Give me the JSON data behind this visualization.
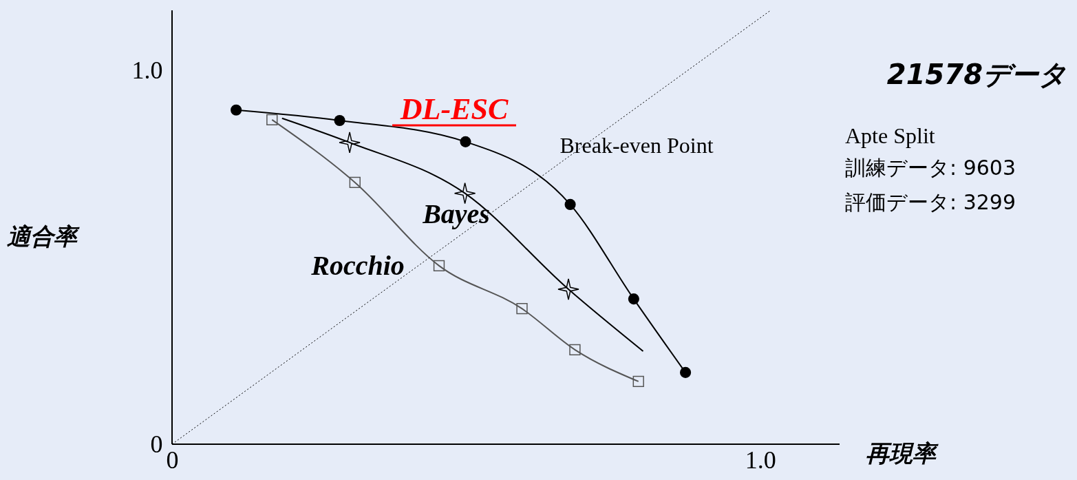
{
  "chart_data": {
    "type": "line",
    "title": "21578データ",
    "xlabel": "再現率",
    "ylabel": "適合率",
    "xlim": [
      0,
      1.135
    ],
    "ylim": [
      0,
      1.162
    ],
    "xticks": [
      {
        "value": 0,
        "label": "0"
      },
      {
        "value": 1,
        "label": "1.0"
      }
    ],
    "yticks": [
      {
        "value": 0,
        "label": "0"
      },
      {
        "value": 1,
        "label": "1.0"
      }
    ],
    "grid": false,
    "series": [
      {
        "type": "line",
        "marker": "circle",
        "color": "#000000",
        "x": [
          0.109,
          0.285,
          0.499,
          0.677,
          0.785,
          0.873
        ],
        "values": [
          0.895,
          0.867,
          0.81,
          0.642,
          0.389,
          0.192
        ]
      },
      {
        "type": "line",
        "marker": "none",
        "color": "#000000",
        "x": [
          0.187,
          0.302,
          0.498,
          0.674,
          0.801
        ],
        "values": [
          0.873,
          0.808,
          0.672,
          0.415,
          0.249
        ]
      },
      {
        "type": "scatter",
        "marker": "star",
        "color": "#000000",
        "x": [
          0.302,
          0.498,
          0.674
        ],
        "values": [
          0.808,
          0.672,
          0.415
        ]
      },
      {
        "type": "line",
        "marker": "square",
        "color": "#555555",
        "x": [
          0.17,
          0.311,
          0.454,
          0.595,
          0.685,
          0.793
        ],
        "values": [
          0.869,
          0.701,
          0.478,
          0.363,
          0.253,
          0.168
        ]
      },
      {
        "type": "line",
        "marker": "none",
        "line_style": "dotted",
        "color": "#000000",
        "x": [
          0,
          1.016
        ],
        "values": [
          0,
          1.16
        ]
      }
    ],
    "annotations": [
      "DL-ESC",
      "Bayes",
      "Rocchio",
      "Break-even Point",
      "Apte   Split",
      "訓練データ:  9603",
      "評価データ:  3299"
    ]
  }
}
